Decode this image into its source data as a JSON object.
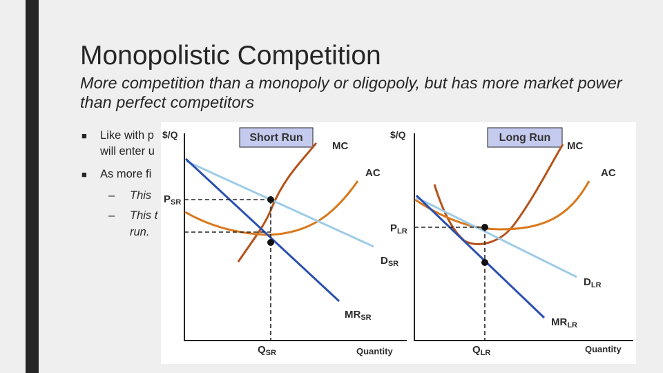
{
  "slide": {
    "title": "Monopolistic Competition",
    "subtitle": "More competition than a monopoly or oligopoly, but has more market power than perfect competitors",
    "bullets": [
      {
        "lines": [
          "Like with p",
          "will enter u"
        ]
      },
      {
        "lines": [
          "As more fi"
        ],
        "sub": [
          {
            "lines": [
              "This"
            ]
          },
          {
            "lines": [
              "This t",
              "run."
            ]
          }
        ]
      }
    ]
  },
  "colors": {
    "mc_curve": "#b5521b",
    "ac_curve": "#d9781c",
    "demand_curve": "#9ecbe8",
    "mr_curve": "#2b4fb1",
    "box_fill": "#c5cbee",
    "sidebar": "#262626"
  },
  "panels": [
    {
      "box_label": "Short Run",
      "y_axis_label": "$/Q",
      "x_axis_label": "Quantity",
      "price_label": {
        "main": "P",
        "sub": "SR"
      },
      "quantity_label": {
        "main": "Q",
        "sub": "SR"
      },
      "mc_label": "MC",
      "ac_label": "AC",
      "demand_label": {
        "main": "D",
        "sub": "SR"
      },
      "mr_label": {
        "main": "MR",
        "sub": "SR"
      }
    },
    {
      "box_label": "Long Run",
      "y_axis_label": "$/Q",
      "x_axis_label": "Quantity",
      "price_label": {
        "main": "P",
        "sub": "LR"
      },
      "quantity_label": {
        "main": "Q",
        "sub": "LR"
      },
      "mc_label": "MC",
      "ac_label": "AC",
      "demand_label": {
        "main": "D",
        "sub": "LR"
      },
      "mr_label": {
        "main": "MR",
        "sub": "LR"
      }
    }
  ]
}
